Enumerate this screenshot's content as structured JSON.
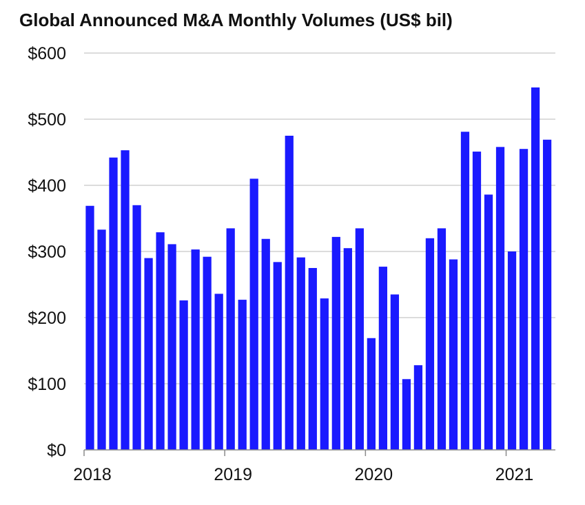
{
  "chart_data": {
    "type": "bar",
    "title": "Global Announced M&A Monthly Volumes (US$ bil)",
    "xlabel": "",
    "ylabel": "",
    "ylim": [
      0,
      600
    ],
    "y_ticks": [
      "$0",
      "$100",
      "$200",
      "$300",
      "$400",
      "$500",
      "$600"
    ],
    "x_tick_labels": [
      "2018",
      "2019",
      "2020",
      "2021"
    ],
    "x_tick_month_index": [
      0,
      12,
      24,
      36
    ],
    "grid": "horizontal",
    "bar_color": "#1a1aff",
    "categories": [
      "Jan 2018",
      "Feb 2018",
      "Mar 2018",
      "Apr 2018",
      "May 2018",
      "Jun 2018",
      "Jul 2018",
      "Aug 2018",
      "Sep 2018",
      "Oct 2018",
      "Nov 2018",
      "Dec 2018",
      "Jan 2019",
      "Feb 2019",
      "Mar 2019",
      "Apr 2019",
      "May 2019",
      "Jun 2019",
      "Jul 2019",
      "Aug 2019",
      "Sep 2019",
      "Oct 2019",
      "Nov 2019",
      "Dec 2019",
      "Jan 2020",
      "Feb 2020",
      "Mar 2020",
      "Apr 2020",
      "May 2020",
      "Jun 2020",
      "Jul 2020",
      "Aug 2020",
      "Sep 2020",
      "Oct 2020",
      "Nov 2020",
      "Dec 2020",
      "Jan 2021",
      "Feb 2021",
      "Mar 2021",
      "Apr 2021"
    ],
    "values": [
      369,
      333,
      442,
      453,
      370,
      290,
      329,
      311,
      226,
      303,
      292,
      236,
      335,
      227,
      410,
      319,
      284,
      475,
      291,
      275,
      229,
      322,
      305,
      335,
      169,
      277,
      235,
      107,
      128,
      320,
      335,
      288,
      481,
      451,
      386,
      458,
      300,
      455,
      548,
      469
    ]
  }
}
